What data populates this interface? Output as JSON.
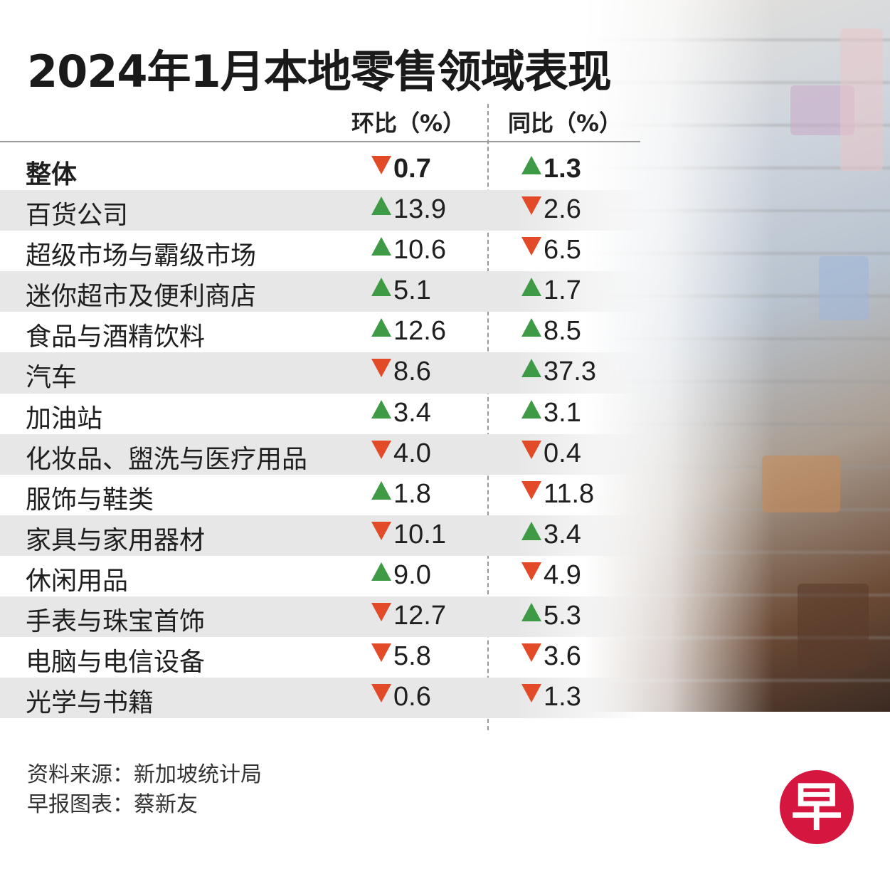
{
  "title": "2024年1月本地零售领域表现",
  "columns": {
    "mom": "环比（%）",
    "yoy": "同比（%）"
  },
  "source": {
    "data": "资料来源：新加坡统计局",
    "chart": "早报图表：蔡新友"
  },
  "logo": {
    "text": "早"
  },
  "colors": {
    "up": "#3f9a46",
    "down": "#e24a28",
    "logo": "#d5173f"
  },
  "chart_data": {
    "type": "table",
    "title": "2024年1月本地零售领域表现",
    "columns": [
      "环比（%）",
      "同比（%）"
    ],
    "rows": [
      {
        "label": "整体",
        "mom": {
          "dir": "down",
          "value": "0.7"
        },
        "yoy": {
          "dir": "up",
          "value": "1.3"
        }
      },
      {
        "label": "百货公司",
        "mom": {
          "dir": "up",
          "value": "13.9"
        },
        "yoy": {
          "dir": "down",
          "value": "2.6"
        }
      },
      {
        "label": "超级市场与霸级市场",
        "mom": {
          "dir": "up",
          "value": "10.6"
        },
        "yoy": {
          "dir": "down",
          "value": "6.5"
        }
      },
      {
        "label": "迷你超市及便利商店",
        "mom": {
          "dir": "up",
          "value": "5.1"
        },
        "yoy": {
          "dir": "up",
          "value": "1.7"
        }
      },
      {
        "label": "食品与酒精饮料",
        "mom": {
          "dir": "up",
          "value": "12.6"
        },
        "yoy": {
          "dir": "up",
          "value": "8.5"
        }
      },
      {
        "label": "汽车",
        "mom": {
          "dir": "down",
          "value": "8.6"
        },
        "yoy": {
          "dir": "up",
          "value": "37.3"
        }
      },
      {
        "label": "加油站",
        "mom": {
          "dir": "up",
          "value": "3.4"
        },
        "yoy": {
          "dir": "up",
          "value": "3.1"
        }
      },
      {
        "label": "化妆品、盥洗与医疗用品",
        "mom": {
          "dir": "down",
          "value": "4.0"
        },
        "yoy": {
          "dir": "down",
          "value": "0.4"
        }
      },
      {
        "label": "服饰与鞋类",
        "mom": {
          "dir": "up",
          "value": "1.8"
        },
        "yoy": {
          "dir": "down",
          "value": "11.8"
        }
      },
      {
        "label": "家具与家用器材",
        "mom": {
          "dir": "down",
          "value": "10.1"
        },
        "yoy": {
          "dir": "up",
          "value": "3.4"
        }
      },
      {
        "label": "休闲用品",
        "mom": {
          "dir": "up",
          "value": "9.0"
        },
        "yoy": {
          "dir": "down",
          "value": "4.9"
        }
      },
      {
        "label": "手表与珠宝首饰",
        "mom": {
          "dir": "down",
          "value": "12.7"
        },
        "yoy": {
          "dir": "up",
          "value": "5.3"
        }
      },
      {
        "label": "电脑与电信设备",
        "mom": {
          "dir": "down",
          "value": "5.8"
        },
        "yoy": {
          "dir": "down",
          "value": "3.6"
        }
      },
      {
        "label": "光学与书籍",
        "mom": {
          "dir": "down",
          "value": "0.6"
        },
        "yoy": {
          "dir": "down",
          "value": "1.3"
        }
      }
    ]
  }
}
